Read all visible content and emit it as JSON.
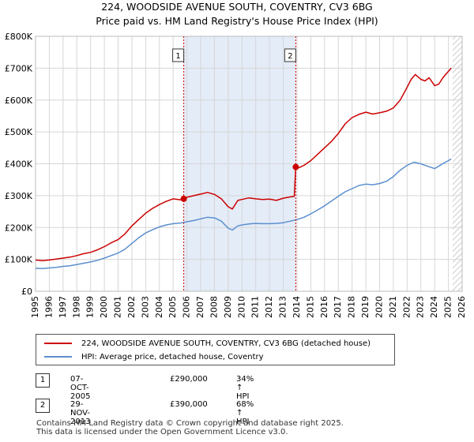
{
  "title": "224, WOODSIDE AVENUE SOUTH, COVENTRY, CV3 6BG",
  "subtitle": "Price paid vs. HM Land Registry's House Price Index (HPI)",
  "colors": {
    "price_paid": "#cc0000",
    "hpi": "#5b8fcf",
    "shade": "#e4ecf8",
    "grid": "#d6d6d6",
    "marker": "#cc0000"
  },
  "chart_data": {
    "type": "line",
    "title": "224, WOODSIDE AVENUE SOUTH, COVENTRY, CV3 6BG",
    "subtitle": "Price paid vs. HM Land Registry's House Price Index (HPI)",
    "xlabel": "",
    "ylabel": "",
    "xlim": [
      1995,
      2026
    ],
    "ylim": [
      0,
      800000
    ],
    "x_ticks": [
      1995,
      1996,
      1997,
      1998,
      1999,
      2000,
      2001,
      2002,
      2003,
      2004,
      2005,
      2006,
      2007,
      2008,
      2009,
      2010,
      2011,
      2012,
      2013,
      2014,
      2015,
      2016,
      2017,
      2018,
      2019,
      2020,
      2021,
      2022,
      2023,
      2024,
      2025,
      2026
    ],
    "y_ticks": [
      0,
      100000,
      200000,
      300000,
      400000,
      500000,
      600000,
      700000,
      800000
    ],
    "y_tick_labels": [
      "£0",
      "£100K",
      "£200K",
      "£300K",
      "£400K",
      "£500K",
      "£600K",
      "£700K",
      "£800K"
    ],
    "grid": true,
    "shaded_region": [
      2005.77,
      2013.91
    ],
    "hatched_region_from": 2025.3,
    "series": [
      {
        "name": "224, WOODSIDE AVENUE SOUTH, COVENTRY, CV3 6BG (detached house)",
        "x": [
          1995,
          1995.5,
          1996,
          1996.5,
          1997,
          1997.5,
          1998,
          1998.5,
          1999,
          1999.5,
          2000,
          2000.5,
          2001,
          2001.5,
          2002,
          2002.5,
          2003,
          2003.5,
          2004,
          2004.5,
          2005,
          2005.5,
          2005.77,
          2006,
          2006.5,
          2007,
          2007.5,
          2008,
          2008.5,
          2009,
          2009.3,
          2009.7,
          2010,
          2010.5,
          2011,
          2011.5,
          2012,
          2012.5,
          2013,
          2013.5,
          2013.8,
          2013.91,
          2014,
          2014.5,
          2015,
          2015.5,
          2016,
          2016.5,
          2017,
          2017.5,
          2018,
          2018.5,
          2019,
          2019.5,
          2020,
          2020.5,
          2021,
          2021.5,
          2022,
          2022.3,
          2022.6,
          2023,
          2023.3,
          2023.6,
          2024,
          2024.3,
          2024.6,
          2025,
          2025.2
        ],
        "y": [
          98000,
          96000,
          98000,
          101000,
          104000,
          107000,
          112000,
          118000,
          122000,
          130000,
          140000,
          152000,
          162000,
          180000,
          205000,
          225000,
          245000,
          260000,
          272000,
          282000,
          290000,
          287000,
          290000,
          295000,
          300000,
          305000,
          310000,
          304000,
          290000,
          265000,
          258000,
          285000,
          288000,
          293000,
          290000,
          288000,
          289000,
          285000,
          292000,
          296000,
          298000,
          390000,
          385000,
          395000,
          410000,
          430000,
          450000,
          470000,
          495000,
          525000,
          545000,
          555000,
          562000,
          556000,
          560000,
          565000,
          575000,
          600000,
          640000,
          665000,
          680000,
          665000,
          660000,
          670000,
          645000,
          650000,
          670000,
          690000,
          700000
        ]
      },
      {
        "name": "HPI: Average price, detached house, Coventry",
        "x": [
          1995,
          1995.5,
          1996,
          1996.5,
          1997,
          1997.5,
          1998,
          1998.5,
          1999,
          1999.5,
          2000,
          2000.5,
          2001,
          2001.5,
          2002,
          2002.5,
          2003,
          2003.5,
          2004,
          2004.5,
          2005,
          2005.5,
          2006,
          2006.5,
          2007,
          2007.5,
          2008,
          2008.5,
          2009,
          2009.3,
          2009.7,
          2010,
          2010.5,
          2011,
          2011.5,
          2012,
          2012.5,
          2013,
          2013.5,
          2014,
          2014.5,
          2015,
          2015.5,
          2016,
          2016.5,
          2017,
          2017.5,
          2018,
          2018.5,
          2019,
          2019.5,
          2020,
          2020.5,
          2021,
          2021.5,
          2022,
          2022.5,
          2023,
          2023.5,
          2024,
          2024.5,
          2025,
          2025.2
        ],
        "y": [
          72000,
          71000,
          73000,
          75000,
          78000,
          80000,
          84000,
          88000,
          92000,
          97000,
          104000,
          112000,
          120000,
          132000,
          150000,
          168000,
          183000,
          193000,
          202000,
          208000,
          212000,
          214000,
          218000,
          222000,
          227000,
          232000,
          230000,
          220000,
          198000,
          192000,
          205000,
          208000,
          211000,
          213000,
          212000,
          212000,
          213000,
          215000,
          220000,
          225000,
          232000,
          243000,
          255000,
          268000,
          283000,
          298000,
          312000,
          322000,
          332000,
          336000,
          334000,
          338000,
          345000,
          360000,
          380000,
          395000,
          405000,
          400000,
          392000,
          385000,
          398000,
          410000,
          415000
        ]
      }
    ],
    "sales": [
      {
        "label": "1",
        "x": 2005.77,
        "y": 290000
      },
      {
        "label": "2",
        "x": 2013.91,
        "y": 390000
      }
    ]
  },
  "legend": [
    {
      "label": "224, WOODSIDE AVENUE SOUTH, COVENTRY, CV3 6BG (detached house)"
    },
    {
      "label": "HPI: Average price, detached house, Coventry"
    }
  ],
  "transactions": [
    {
      "num": "1",
      "date": "07-OCT-2005",
      "price": "£290,000",
      "hpi": "34% ↑ HPI"
    },
    {
      "num": "2",
      "date": "29-NOV-2013",
      "price": "£390,000",
      "hpi": "68% ↑ HPI"
    }
  ],
  "footer": {
    "line1": "Contains HM Land Registry data © Crown copyright and database right 2025.",
    "line2": "This data is licensed under the Open Government Licence v3.0."
  }
}
